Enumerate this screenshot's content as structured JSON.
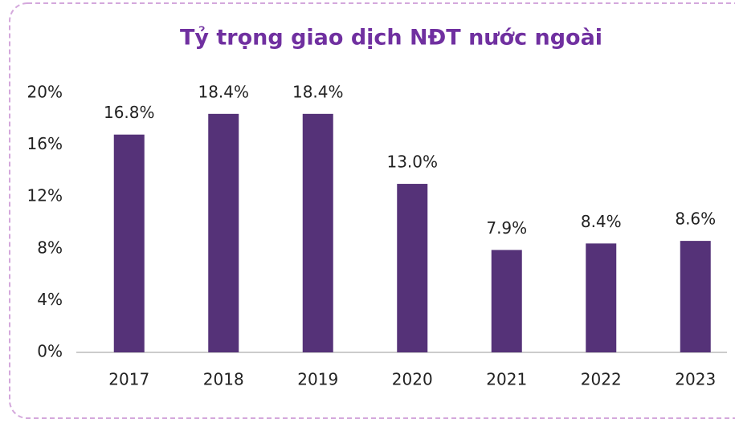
{
  "chart_data": {
    "type": "bar",
    "title": "Tỷ trọng giao dịch NĐT nước ngoài",
    "categories": [
      "2017",
      "2018",
      "2019",
      "2020",
      "2021",
      "2022",
      "2023"
    ],
    "values": [
      16.8,
      18.4,
      18.4,
      13.0,
      7.9,
      8.4,
      8.6
    ],
    "value_labels": [
      "16.8%",
      "18.4%",
      "18.4%",
      "13.0%",
      "7.9%",
      "8.4%",
      "8.6%"
    ],
    "color": "#553278",
    "ylim": [
      0,
      20
    ],
    "yticks": [
      {
        "value": 0,
        "label": "0%"
      },
      {
        "value": 4,
        "label": "4%"
      },
      {
        "value": 8,
        "label": "8%"
      },
      {
        "value": 12,
        "label": "12%"
      },
      {
        "value": 16,
        "label": "16%"
      },
      {
        "value": 20,
        "label": "20%"
      }
    ],
    "grid": false
  }
}
